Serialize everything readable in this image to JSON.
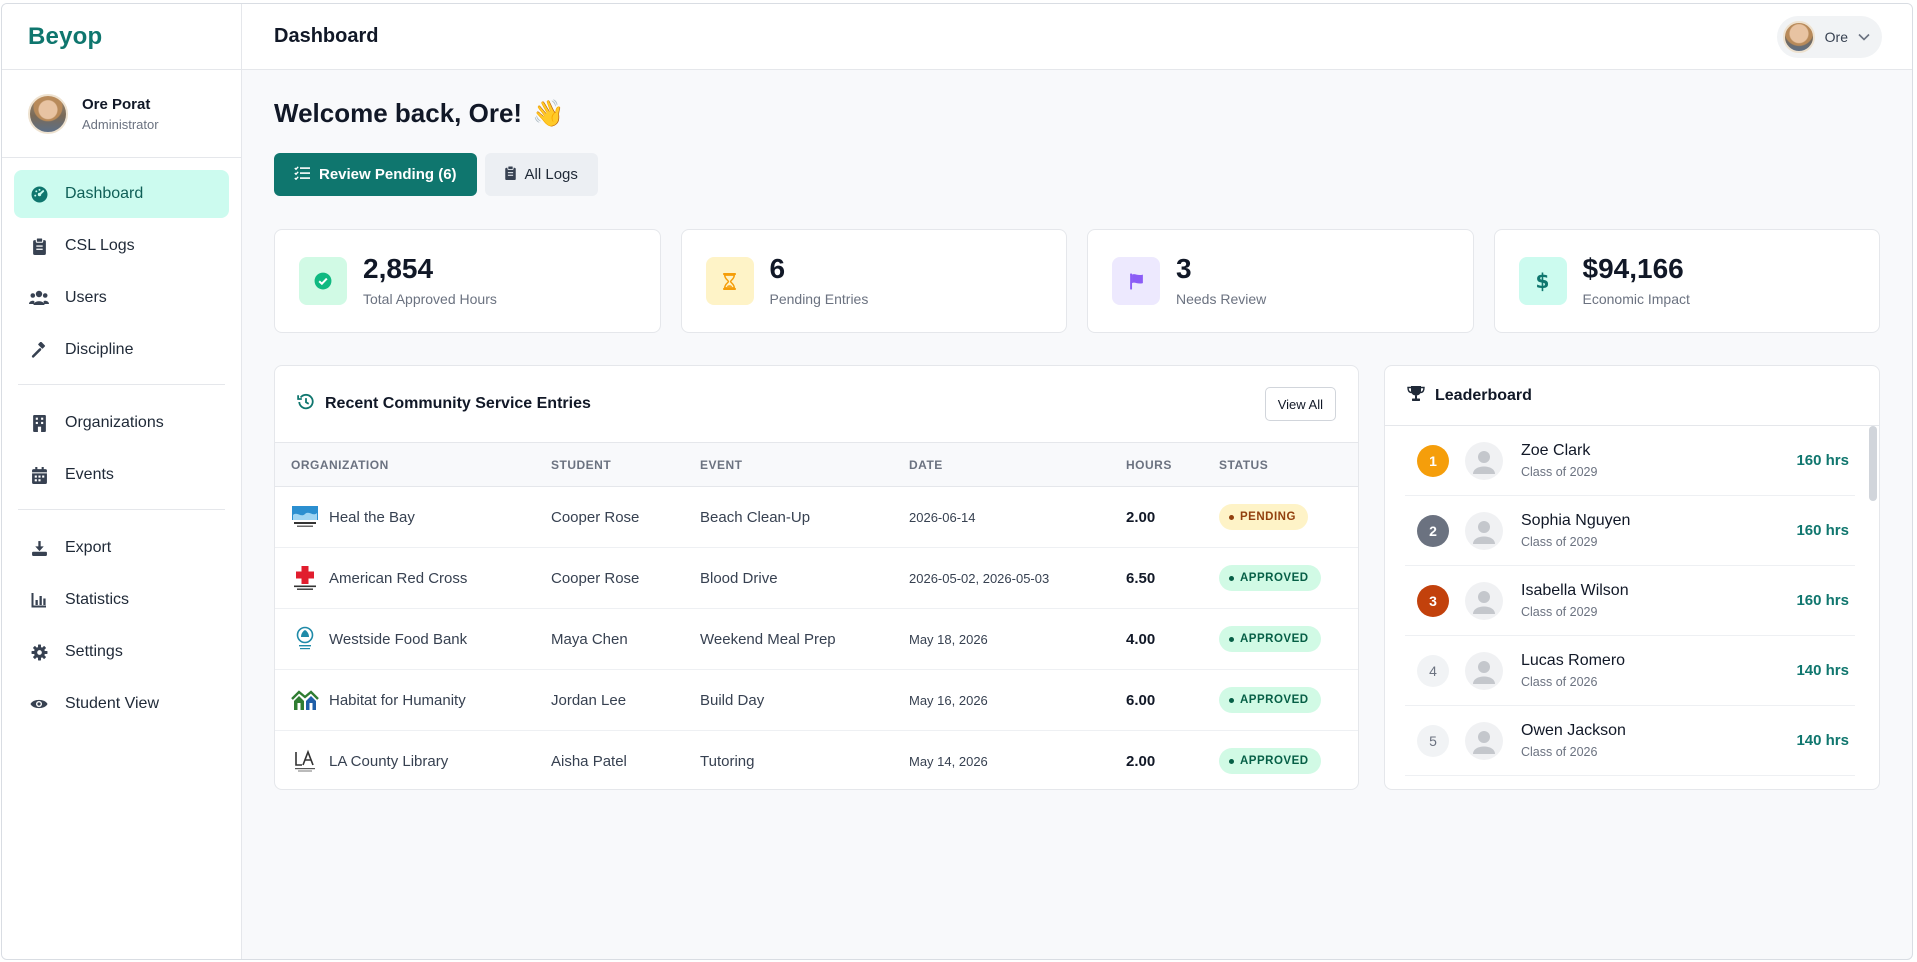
{
  "app": {
    "brand": "Beyop"
  },
  "profile": {
    "name": "Ore Porat",
    "role": "Administrator"
  },
  "nav": {
    "group1": [
      {
        "label": "Dashboard",
        "icon": "dashboard-icon",
        "active": true
      },
      {
        "label": "CSL Logs",
        "icon": "clipboard-icon"
      },
      {
        "label": "Users",
        "icon": "users-icon"
      },
      {
        "label": "Discipline",
        "icon": "gavel-icon"
      }
    ],
    "group2": [
      {
        "label": "Organizations",
        "icon": "building-icon"
      },
      {
        "label": "Events",
        "icon": "calendar-icon"
      }
    ],
    "group3": [
      {
        "label": "Export",
        "icon": "download-icon"
      },
      {
        "label": "Statistics",
        "icon": "chart-icon"
      },
      {
        "label": "Settings",
        "icon": "gear-icon"
      },
      {
        "label": "Student View",
        "icon": "eye-icon"
      }
    ]
  },
  "topbar": {
    "title": "Dashboard",
    "user": "Ore"
  },
  "welcome": {
    "text": "Welcome back, Ore!",
    "emoji": "👋"
  },
  "actions": {
    "review": "Review Pending (6)",
    "logs": "All Logs"
  },
  "stats": [
    {
      "value": "2,854",
      "label": "Total Approved Hours",
      "icon": "check-circle-icon",
      "color": "#10b981"
    },
    {
      "value": "6",
      "label": "Pending Entries",
      "icon": "hourglass-icon",
      "color": "#f59e0b"
    },
    {
      "value": "3",
      "label": "Needs Review",
      "icon": "flag-icon",
      "color": "#8b5cf6"
    },
    {
      "value": "$94,166",
      "label": "Economic Impact",
      "icon": "dollar-icon",
      "color": "#0f766e"
    }
  ],
  "entries": {
    "title": "Recent Community Service Entries",
    "view_all": "View All",
    "columns": [
      "ORGANIZATION",
      "STUDENT",
      "EVENT",
      "DATE",
      "HOURS",
      "STATUS"
    ],
    "rows": [
      {
        "org": "Heal the Bay",
        "student": "Cooper Rose",
        "event": "Beach Clean-Up",
        "date": "2026-06-14",
        "hours": "2.00",
        "status": "PENDING"
      },
      {
        "org": "American Red Cross",
        "student": "Cooper Rose",
        "event": "Blood Drive",
        "date": "2026-05-02, 2026-05-03",
        "hours": "6.50",
        "status": "APPROVED"
      },
      {
        "org": "Westside Food Bank",
        "student": "Maya Chen",
        "event": "Weekend Meal Prep",
        "date": "May 18, 2026",
        "hours": "4.00",
        "status": "APPROVED"
      },
      {
        "org": "Habitat for Humanity",
        "student": "Jordan Lee",
        "event": "Build Day",
        "date": "May 16, 2026",
        "hours": "6.00",
        "status": "APPROVED"
      },
      {
        "org": "LA County Library",
        "student": "Aisha Patel",
        "event": "Tutoring",
        "date": "May 14, 2026",
        "hours": "2.00",
        "status": "APPROVED"
      }
    ]
  },
  "leaderboard": {
    "title": "Leaderboard",
    "rows": [
      {
        "rank": "1",
        "name": "Zoe Clark",
        "class": "Class of 2029",
        "hours": "160 hrs"
      },
      {
        "rank": "2",
        "name": "Sophia Nguyen",
        "class": "Class of 2029",
        "hours": "160 hrs"
      },
      {
        "rank": "3",
        "name": "Isabella Wilson",
        "class": "Class of 2029",
        "hours": "160 hrs"
      },
      {
        "rank": "4",
        "name": "Lucas Romero",
        "class": "Class of 2026",
        "hours": "140 hrs"
      },
      {
        "rank": "5",
        "name": "Owen Jackson",
        "class": "Class of 2026",
        "hours": "140 hrs"
      }
    ]
  }
}
